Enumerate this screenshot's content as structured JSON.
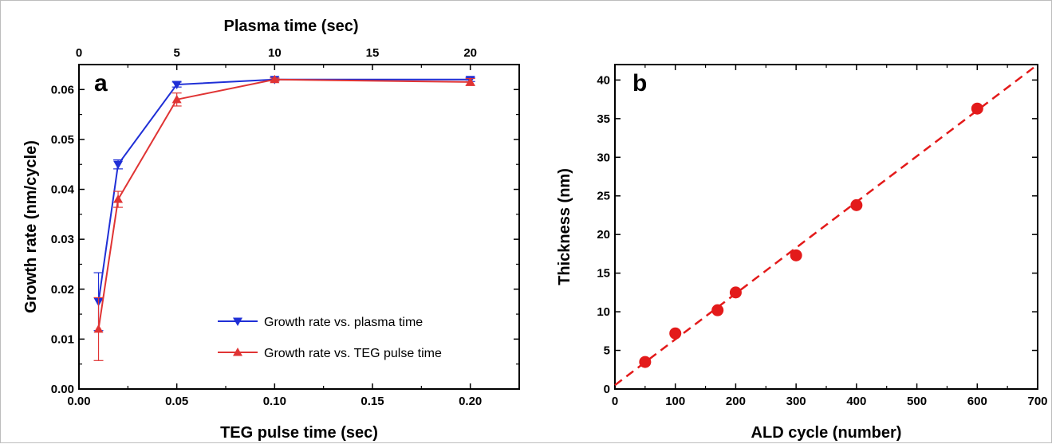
{
  "chart_data": [
    {
      "type": "line",
      "panel_label": "a",
      "xlabel": "TEG pulse time (sec)",
      "ylabel": "Growth rate (nm/cycle)",
      "top_xlabel": "Plasma time (sec)",
      "xlim": [
        0.0,
        0.225
      ],
      "ylim": [
        0.0,
        0.065
      ],
      "top_xlim": [
        0,
        22.5
      ],
      "xticks": [
        "0.00",
        "0.05",
        "0.10",
        "0.15",
        "0.20"
      ],
      "yticks": [
        "0.00",
        "0.01",
        "0.02",
        "0.03",
        "0.04",
        "0.05",
        "0.06"
      ],
      "top_xticks": [
        "0",
        "5",
        "10",
        "15",
        "20"
      ],
      "legend_position": "lower-right",
      "series": [
        {
          "name": "Growth rate vs. plasma time",
          "x_axis": "top",
          "x": [
            1,
            2,
            5,
            10,
            20
          ],
          "y": [
            0.0175,
            0.045,
            0.061,
            0.062,
            0.062
          ],
          "yerr": [
            0.0058,
            0.0009,
            0.0005,
            0.0003,
            0.0004
          ],
          "color": "#1f2fd6",
          "marker": "triangle-down"
        },
        {
          "name": "Growth rate vs. TEG pulse time",
          "x_axis": "bottom",
          "x": [
            0.01,
            0.02,
            0.05,
            0.1,
            0.2
          ],
          "y": [
            0.012,
            0.038,
            0.058,
            0.062,
            0.0615
          ],
          "yerr": [
            0.0063,
            0.0016,
            0.0013,
            0.0003,
            0.0007
          ],
          "color": "#e03434",
          "marker": "triangle-up"
        }
      ]
    },
    {
      "type": "scatter",
      "panel_label": "b",
      "xlabel": "ALD cycle (number)",
      "ylabel": "Thickness (nm)",
      "xlim": [
        0,
        700
      ],
      "ylim": [
        0,
        42
      ],
      "xticks": [
        "0",
        "100",
        "200",
        "300",
        "400",
        "500",
        "600",
        "700"
      ],
      "yticks": [
        "0",
        "5",
        "10",
        "15",
        "20",
        "25",
        "30",
        "35",
        "40"
      ],
      "color": "#e31a1a",
      "points": {
        "x": [
          50,
          100,
          170,
          200,
          300,
          400,
          600
        ],
        "y": [
          3.5,
          7.2,
          10.2,
          12.5,
          17.3,
          23.8,
          36.3
        ]
      },
      "fit_line": {
        "style": "dashed",
        "x": [
          0,
          700
        ],
        "y": [
          0.5,
          42
        ]
      }
    }
  ]
}
